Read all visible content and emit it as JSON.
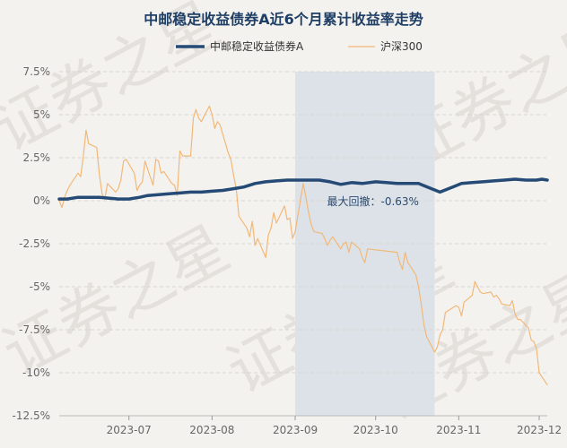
{
  "chart_data": {
    "type": "line",
    "title": "中邮稳定收益债券A近6个月累计收益率走势",
    "xlabel": "",
    "ylabel": "",
    "ylim": [
      -12.5,
      7.5
    ],
    "yticks": [
      7.5,
      5,
      2.5,
      0,
      -2.5,
      -5,
      -7.5,
      -10,
      -12.5
    ],
    "ytick_labels": [
      "7.5%",
      "5%",
      "2.5%",
      "0%",
      "-2.5%",
      "-5%",
      "-7.5%",
      "-10%",
      "-12.5%"
    ],
    "x_start": "2023-06-05",
    "x_end": "2023-12-04",
    "xticks": [
      "2023-07-01",
      "2023-08-01",
      "2023-09-01",
      "2023-10-01",
      "2023-11-01",
      "2023-12-01"
    ],
    "xtick_labels": [
      "2023-07",
      "2023-08",
      "2023-09",
      "2023-10",
      "2023-11",
      "2023-12"
    ],
    "grid": true,
    "legend_position": "top",
    "watermark": "证券之星",
    "series": [
      {
        "name": "中邮稳定收益债券A",
        "color": "#244a75",
        "x": [
          "2023-06-05",
          "2023-06-08",
          "2023-06-12",
          "2023-06-16",
          "2023-06-20",
          "2023-06-27",
          "2023-07-01",
          "2023-07-05",
          "2023-07-08",
          "2023-07-12",
          "2023-07-16",
          "2023-07-20",
          "2023-07-24",
          "2023-07-28",
          "2023-08-01",
          "2023-08-05",
          "2023-08-09",
          "2023-08-13",
          "2023-08-17",
          "2023-08-21",
          "2023-08-25",
          "2023-08-29",
          "2023-09-02",
          "2023-09-06",
          "2023-09-10",
          "2023-09-14",
          "2023-09-18",
          "2023-09-22",
          "2023-09-26",
          "2023-10-01",
          "2023-10-05",
          "2023-10-09",
          "2023-10-13",
          "2023-10-17",
          "2023-10-21",
          "2023-10-25",
          "2023-10-29",
          "2023-11-02",
          "2023-11-06",
          "2023-11-10",
          "2023-11-14",
          "2023-11-18",
          "2023-11-22",
          "2023-11-26",
          "2023-11-30",
          "2023-12-02",
          "2023-12-04"
        ],
        "values": [
          0.1,
          0.1,
          0.2,
          0.2,
          0.2,
          0.1,
          0.1,
          0.2,
          0.3,
          0.35,
          0.4,
          0.45,
          0.5,
          0.5,
          0.55,
          0.6,
          0.7,
          0.8,
          1.0,
          1.1,
          1.15,
          1.2,
          1.2,
          1.2,
          1.2,
          1.1,
          0.95,
          1.05,
          1.0,
          1.1,
          1.05,
          1.0,
          1.0,
          1.0,
          0.75,
          0.5,
          0.75,
          1.0,
          1.05,
          1.1,
          1.15,
          1.2,
          1.25,
          1.2,
          1.2,
          1.25,
          1.2
        ]
      },
      {
        "name": "沪深300",
        "color": "#f2b877",
        "x": [
          "2023-06-05",
          "2023-06-06",
          "2023-06-07",
          "2023-06-08",
          "2023-06-09",
          "2023-06-12",
          "2023-06-13",
          "2023-06-14",
          "2023-06-15",
          "2023-06-16",
          "2023-06-19",
          "2023-06-20",
          "2023-06-21",
          "2023-06-22",
          "2023-06-23",
          "2023-06-26",
          "2023-06-27",
          "2023-06-28",
          "2023-06-29",
          "2023-06-30",
          "2023-07-03",
          "2023-07-04",
          "2023-07-05",
          "2023-07-06",
          "2023-07-07",
          "2023-07-10",
          "2023-07-11",
          "2023-07-12",
          "2023-07-13",
          "2023-07-14",
          "2023-07-17",
          "2023-07-18",
          "2023-07-19",
          "2023-07-20",
          "2023-07-21",
          "2023-07-24",
          "2023-07-25",
          "2023-07-26",
          "2023-07-27",
          "2023-07-28",
          "2023-07-31",
          "2023-08-01",
          "2023-08-02",
          "2023-08-03",
          "2023-08-04",
          "2023-08-07",
          "2023-08-08",
          "2023-08-09",
          "2023-08-10",
          "2023-08-11",
          "2023-08-14",
          "2023-08-15",
          "2023-08-16",
          "2023-08-17",
          "2023-08-18",
          "2023-08-21",
          "2023-08-22",
          "2023-08-23",
          "2023-08-24",
          "2023-08-25",
          "2023-08-28",
          "2023-08-29",
          "2023-08-30",
          "2023-08-31",
          "2023-09-01",
          "2023-09-04",
          "2023-09-05",
          "2023-09-06",
          "2023-09-07",
          "2023-09-08",
          "2023-09-11",
          "2023-09-12",
          "2023-09-13",
          "2023-09-14",
          "2023-09-15",
          "2023-09-18",
          "2023-09-19",
          "2023-09-20",
          "2023-09-21",
          "2023-09-22",
          "2023-09-25",
          "2023-09-26",
          "2023-09-27",
          "2023-09-28",
          "2023-10-09",
          "2023-10-10",
          "2023-10-11",
          "2023-10-12",
          "2023-10-13",
          "2023-10-16",
          "2023-10-17",
          "2023-10-18",
          "2023-10-19",
          "2023-10-20",
          "2023-10-23",
          "2023-10-24",
          "2023-10-25",
          "2023-10-26",
          "2023-10-27",
          "2023-10-30",
          "2023-10-31",
          "2023-11-01",
          "2023-11-02",
          "2023-11-03",
          "2023-11-06",
          "2023-11-07",
          "2023-11-08",
          "2023-11-09",
          "2023-11-10",
          "2023-11-13",
          "2023-11-14",
          "2023-11-15",
          "2023-11-16",
          "2023-11-17",
          "2023-11-20",
          "2023-11-21",
          "2023-11-22",
          "2023-11-23",
          "2023-11-24",
          "2023-11-27",
          "2023-11-28",
          "2023-11-29",
          "2023-11-30",
          "2023-12-01",
          "2023-12-04"
        ],
        "values": [
          0.0,
          -0.4,
          0.2,
          0.6,
          0.9,
          1.6,
          1.4,
          2.6,
          4.1,
          3.3,
          3.1,
          1.5,
          0.4,
          0.1,
          1.0,
          0.5,
          0.7,
          1.2,
          2.3,
          2.4,
          1.6,
          0.6,
          0.9,
          1.1,
          2.3,
          0.9,
          2.4,
          2.3,
          1.6,
          1.7,
          1.0,
          0.9,
          0.3,
          2.9,
          2.6,
          2.6,
          4.8,
          5.3,
          4.8,
          4.6,
          5.5,
          5.0,
          4.2,
          4.6,
          4.4,
          2.8,
          2.4,
          1.5,
          0.7,
          -0.9,
          -1.6,
          -2.1,
          -1.2,
          -2.6,
          -2.2,
          -3.3,
          -2.0,
          -1.6,
          -0.7,
          -1.3,
          -0.3,
          -1.1,
          -1.0,
          -2.2,
          -1.8,
          1.0,
          0.2,
          -0.7,
          -1.4,
          -1.8,
          -1.9,
          -2.2,
          -2.6,
          -2.3,
          -2.1,
          -2.8,
          -2.5,
          -2.4,
          -3.0,
          -2.4,
          -2.8,
          -3.3,
          -3.6,
          -2.8,
          -3.0,
          -3.6,
          -4.0,
          -3.0,
          -3.6,
          -4.3,
          -5.0,
          -6.0,
          -7.2,
          -7.9,
          -8.8,
          -8.5,
          -7.8,
          -7.5,
          -6.5,
          -6.2,
          -6.1,
          -6.2,
          -6.7,
          -5.9,
          -5.5,
          -4.7,
          -5.0,
          -5.3,
          -5.4,
          -5.3,
          -5.6,
          -5.5,
          -5.7,
          -6.0,
          -6.1,
          -5.8,
          -6.6,
          -6.9,
          -6.9,
          -7.4,
          -8.1,
          -8.2,
          -8.6,
          -10.0,
          -10.7
        ]
      }
    ],
    "annotations": [
      {
        "type": "shaded_range",
        "x_start": "2023-09-01",
        "x_end": "2023-10-23",
        "color": "#dde2e8"
      },
      {
        "type": "label",
        "text": "最大回撤：-0.63%",
        "x": "2023-09-30",
        "y": 0.05
      }
    ]
  }
}
